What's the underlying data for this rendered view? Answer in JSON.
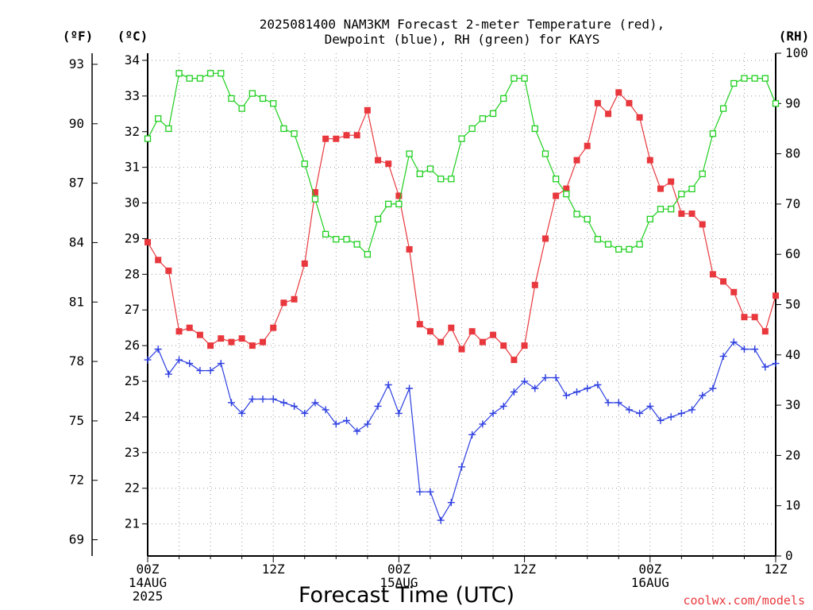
{
  "chart_data": {
    "type": "line",
    "title_lines": [
      "2025081400 NAM3KM Forecast 2-meter Temperature (red),",
      "Dewpoint (blue), RH (green) for KAYS"
    ],
    "xlabel": "Forecast Time (UTC)",
    "credit": "coolwx.com/models",
    "axis_units": {
      "left_outer": "(ºF)",
      "left_inner": "(ºC)",
      "right": "(RH)"
    },
    "celsius_axis": {
      "range": [
        20.1,
        34.2
      ],
      "ticks": [
        21,
        22,
        23,
        24,
        25,
        26,
        27,
        28,
        29,
        30,
        31,
        32,
        33,
        34
      ]
    },
    "fahrenheit_ticks": [
      69,
      72,
      75,
      78,
      81,
      84,
      87,
      90,
      93
    ],
    "rh_axis": {
      "range": [
        0,
        100
      ],
      "ticks": [
        0,
        10,
        20,
        30,
        40,
        50,
        60,
        70,
        80,
        90,
        100
      ]
    },
    "x_axis": {
      "range_hours": [
        0,
        60
      ],
      "ticks": [
        {
          "hour": 0,
          "lines": [
            "00Z",
            "14AUG",
            "2025"
          ]
        },
        {
          "hour": 12,
          "lines": [
            "12Z"
          ]
        },
        {
          "hour": 24,
          "lines": [
            "00Z",
            "15AUG"
          ]
        },
        {
          "hour": 36,
          "lines": [
            "12Z"
          ]
        },
        {
          "hour": 48,
          "lines": [
            "00Z",
            "16AUG"
          ]
        },
        {
          "hour": 60,
          "lines": [
            "12Z"
          ]
        }
      ]
    },
    "grid": true,
    "series": [
      {
        "name": "2-meter Temperature",
        "axis": "celsius",
        "color": "#e8383d",
        "marker": "filled-square",
        "x": [
          0,
          1,
          2,
          3,
          4,
          5,
          6,
          7,
          8,
          9,
          10,
          11,
          12,
          13,
          14,
          15,
          16,
          17,
          18,
          19,
          20,
          21,
          22,
          23,
          24,
          25,
          26,
          27,
          28,
          29,
          30,
          31,
          32,
          33,
          34,
          35,
          36,
          37,
          38,
          39,
          40,
          41,
          42,
          43,
          44,
          45,
          46,
          47,
          48,
          49,
          50,
          51,
          52,
          53,
          54,
          55,
          56,
          57,
          58,
          59,
          60
        ],
        "values": [
          28.9,
          28.4,
          28.1,
          26.4,
          26.5,
          26.3,
          26.0,
          26.2,
          26.1,
          26.2,
          26.0,
          26.1,
          26.5,
          27.2,
          27.3,
          28.3,
          30.3,
          31.8,
          31.8,
          31.9,
          31.9,
          32.6,
          31.2,
          31.1,
          30.2,
          28.7,
          26.6,
          26.4,
          26.1,
          26.5,
          25.9,
          26.4,
          26.1,
          26.3,
          26.0,
          25.6,
          26.0,
          27.7,
          29.0,
          30.2,
          30.4,
          31.2,
          31.6,
          32.8,
          32.5,
          33.1,
          32.8,
          32.4,
          31.2,
          30.4,
          30.6,
          29.7,
          29.7,
          29.4,
          28.0,
          27.8,
          27.5,
          26.8,
          26.8,
          26.4,
          27.4
        ]
      },
      {
        "name": "Dewpoint",
        "axis": "celsius",
        "color": "#2d3fe0",
        "marker": "plus",
        "x": [
          0,
          1,
          2,
          3,
          4,
          5,
          6,
          7,
          8,
          9,
          10,
          11,
          12,
          13,
          14,
          15,
          16,
          17,
          18,
          19,
          20,
          21,
          22,
          23,
          24,
          25,
          26,
          27,
          28,
          29,
          30,
          31,
          32,
          33,
          34,
          35,
          36,
          37,
          38,
          39,
          40,
          41,
          42,
          43,
          44,
          45,
          46,
          47,
          48,
          49,
          50,
          51,
          52,
          53,
          54,
          55,
          56,
          57,
          58,
          59,
          60
        ],
        "values": [
          25.6,
          25.9,
          25.2,
          25.6,
          25.5,
          25.3,
          25.3,
          25.5,
          24.4,
          24.1,
          24.5,
          24.5,
          24.5,
          24.4,
          24.3,
          24.1,
          24.4,
          24.2,
          23.8,
          23.9,
          23.6,
          23.8,
          24.3,
          24.9,
          24.1,
          24.8,
          21.9,
          21.9,
          21.1,
          21.6,
          22.6,
          23.5,
          23.8,
          24.1,
          24.3,
          24.7,
          25.0,
          24.8,
          25.1,
          25.1,
          24.6,
          24.7,
          24.8,
          24.9,
          24.4,
          24.4,
          24.2,
          24.1,
          24.3,
          23.9,
          24.0,
          24.1,
          24.2,
          24.6,
          24.8,
          25.7,
          26.1,
          25.9,
          25.9,
          25.4,
          25.5
        ]
      },
      {
        "name": "RH",
        "axis": "rh",
        "color": "#1fcf1f",
        "marker": "open-square",
        "x": [
          0,
          1,
          2,
          3,
          4,
          5,
          6,
          7,
          8,
          9,
          10,
          11,
          12,
          13,
          14,
          15,
          16,
          17,
          18,
          19,
          20,
          21,
          22,
          23,
          24,
          25,
          26,
          27,
          28,
          29,
          30,
          31,
          32,
          33,
          34,
          35,
          36,
          37,
          38,
          39,
          40,
          41,
          42,
          43,
          44,
          45,
          46,
          47,
          48,
          49,
          50,
          51,
          52,
          53,
          54,
          55,
          56,
          57,
          58,
          59,
          60
        ],
        "values": [
          83,
          87,
          85,
          96,
          95,
          95,
          96,
          96,
          91,
          89,
          92,
          91,
          90,
          85,
          84,
          78,
          71,
          64,
          63,
          63,
          62,
          60,
          67,
          70,
          70,
          80,
          76,
          77,
          75,
          75,
          83,
          85,
          87,
          88,
          91,
          95,
          95,
          85,
          80,
          75,
          72,
          68,
          67,
          63,
          62,
          61,
          61,
          62,
          67,
          69,
          69,
          72,
          73,
          76,
          84,
          89,
          94,
          95,
          95,
          95,
          90
        ]
      }
    ]
  }
}
